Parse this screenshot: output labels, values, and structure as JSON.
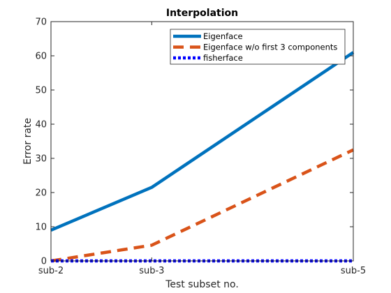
{
  "chart_data": {
    "type": "line",
    "title": "Interpolation",
    "xlabel": "Test subset no.",
    "ylabel": "Error rate",
    "categories": [
      "sub-2",
      "sub-3",
      "sub-5"
    ],
    "x": [
      2,
      3,
      5
    ],
    "xlim": [
      2,
      5
    ],
    "ylim": [
      0,
      70
    ],
    "yticks": [
      0,
      10,
      20,
      30,
      40,
      50,
      60,
      70
    ],
    "grid": false,
    "legend_position": "top-right",
    "series": [
      {
        "name": "Eigenface",
        "values": [
          9,
          21.5,
          61
        ],
        "color": "#0072BD",
        "style": "solid"
      },
      {
        "name": "Eigenface w/o first 3 components",
        "values": [
          0,
          4.6,
          32.5
        ],
        "color": "#D95319",
        "style": "dashed"
      },
      {
        "name": "fisherface",
        "values": [
          0,
          0,
          0
        ],
        "color": "#0000FF",
        "style": "dotted"
      }
    ]
  }
}
